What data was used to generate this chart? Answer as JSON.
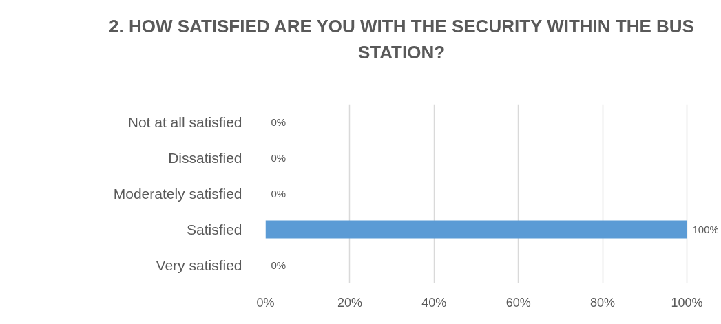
{
  "chart_data": {
    "type": "bar",
    "orientation": "horizontal",
    "title": "2. HOW SATISFIED ARE YOU WITH THE SECURITY WITHIN THE BUS STATION?",
    "categories": [
      "Not at all satisfied",
      "Dissatisfied",
      "Moderately satisfied",
      "Satisfied",
      "Very satisfied"
    ],
    "values": [
      0,
      0,
      0,
      100,
      0
    ],
    "value_labels": [
      "0%",
      "0%",
      "0%",
      "100%",
      "0%"
    ],
    "color": "#5b9bd5",
    "xlim": [
      0,
      100
    ],
    "xticks": [
      {
        "value": 0,
        "label": "0%"
      },
      {
        "value": 20,
        "label": "20%"
      },
      {
        "value": 40,
        "label": "40%"
      },
      {
        "value": 60,
        "label": "60%"
      },
      {
        "value": 80,
        "label": "80%"
      },
      {
        "value": 100,
        "label": "100%"
      }
    ],
    "grid": "x"
  }
}
